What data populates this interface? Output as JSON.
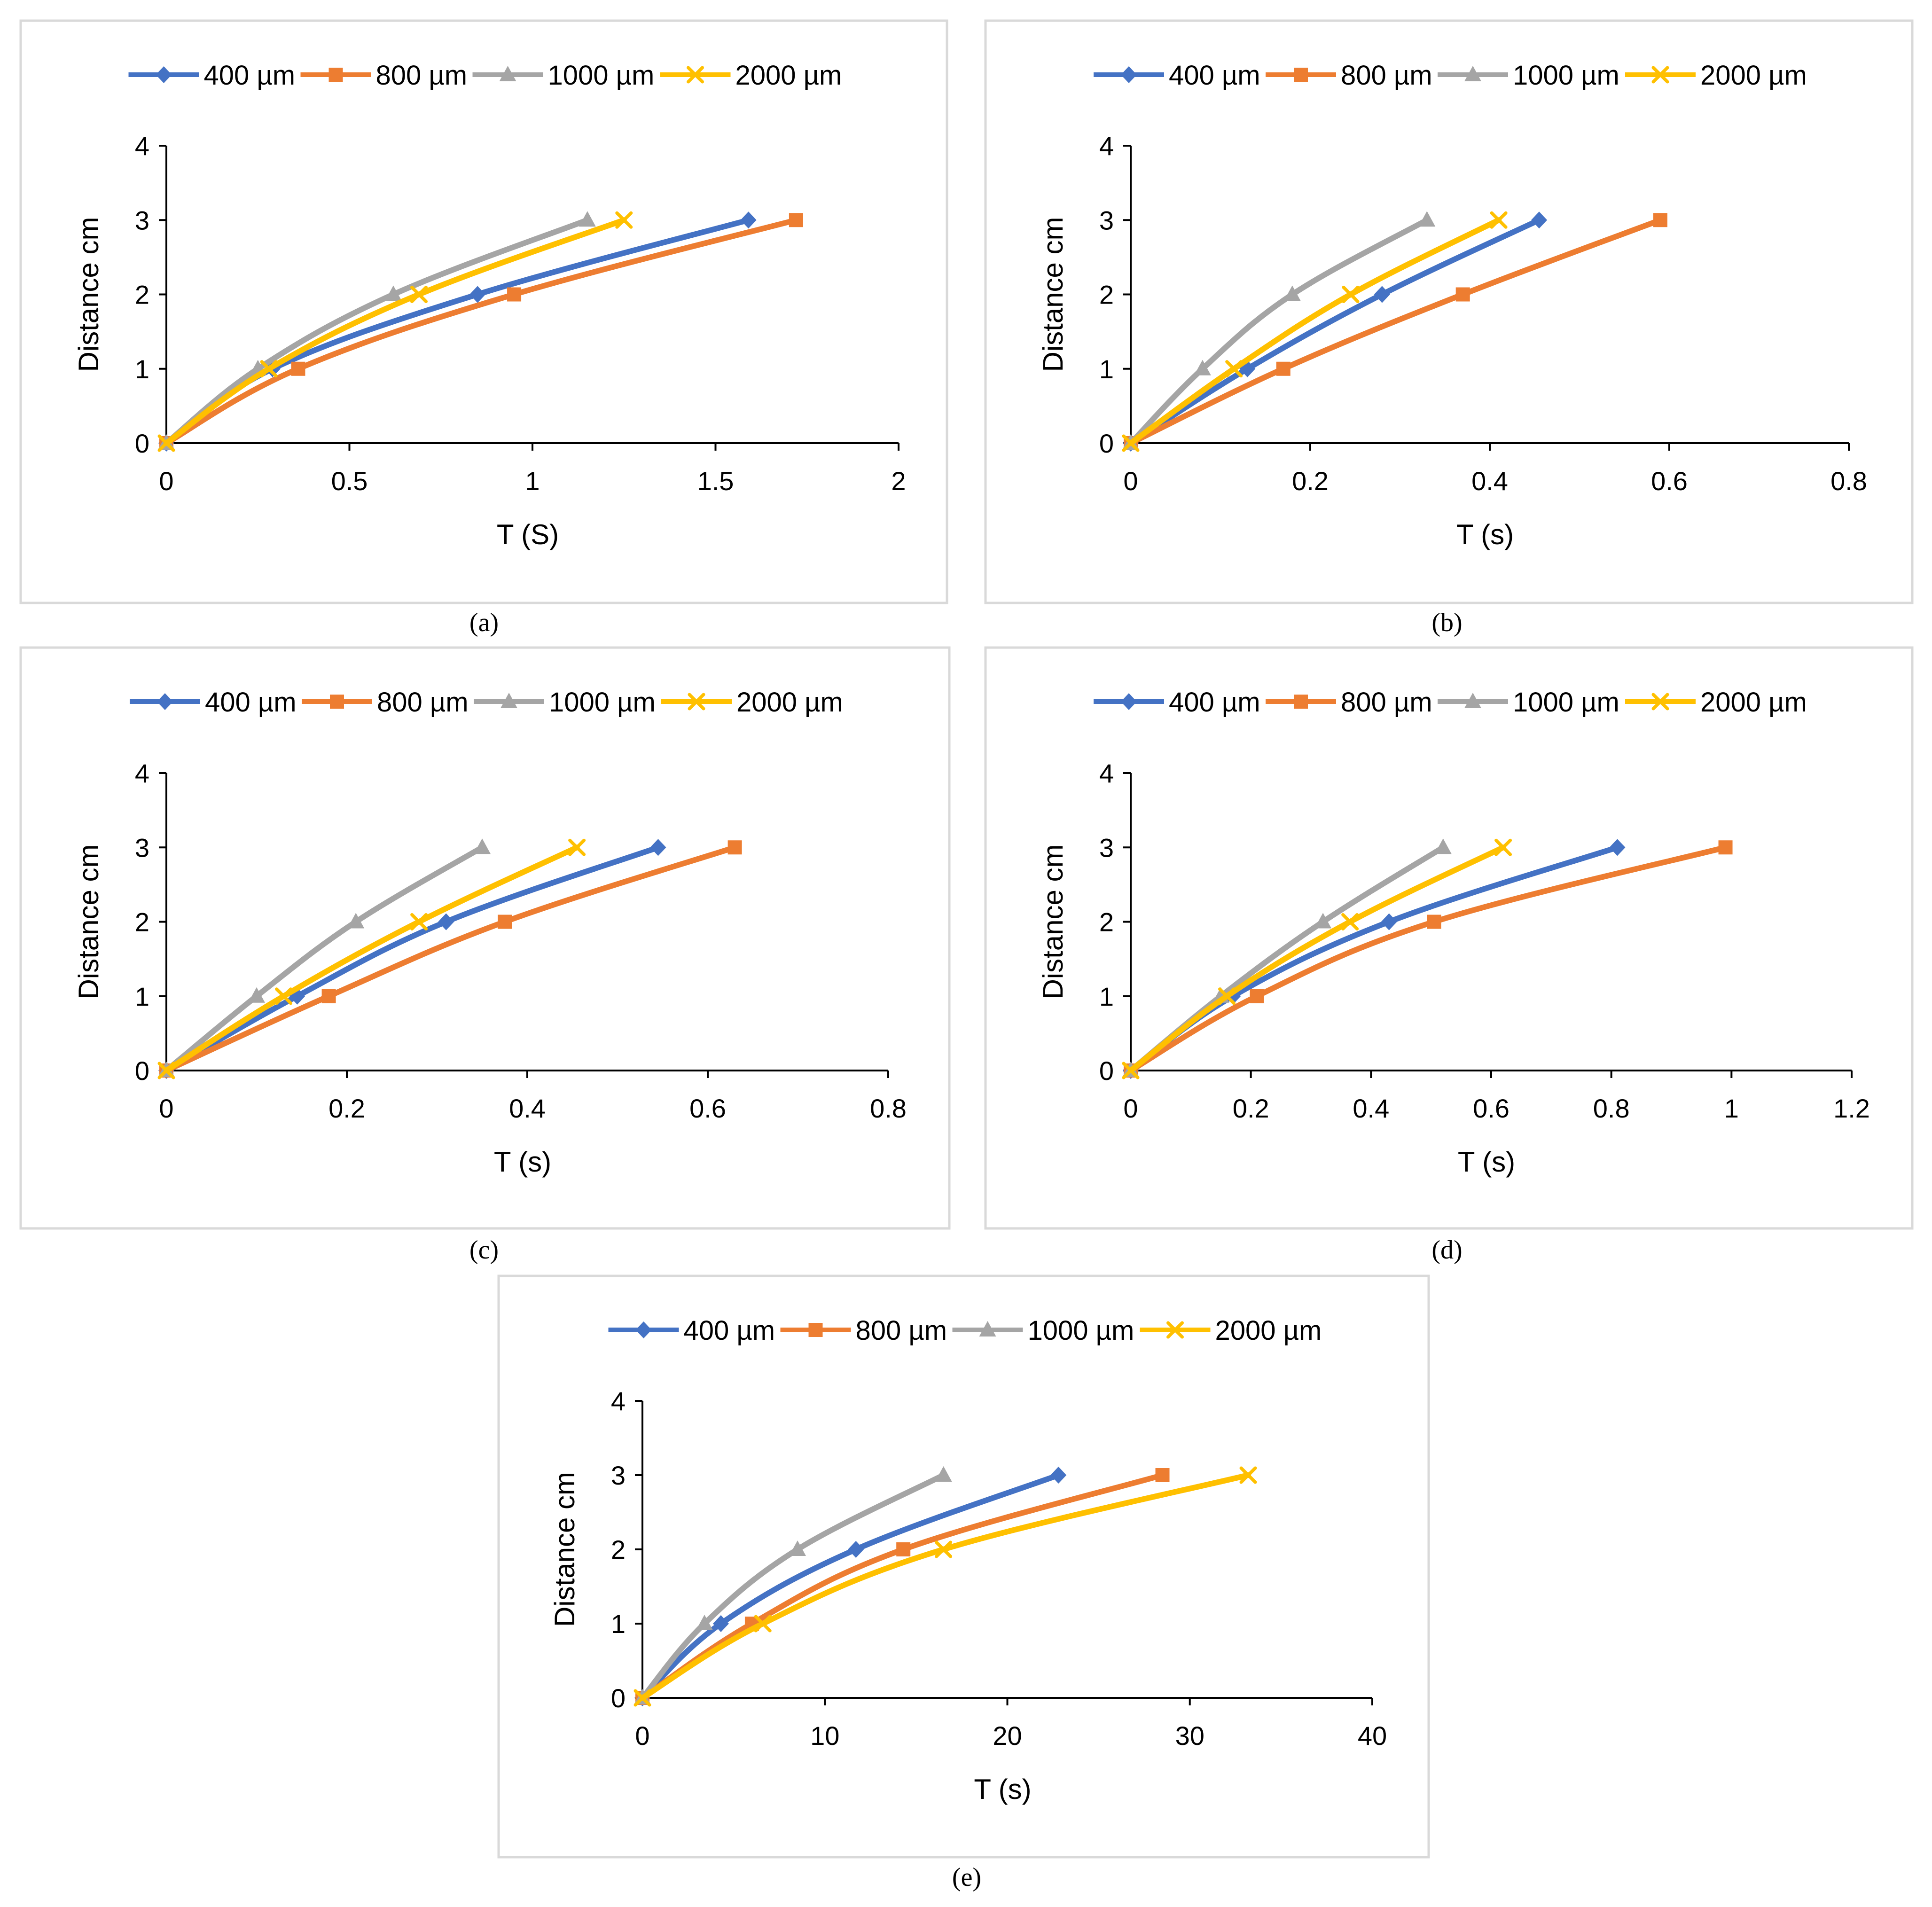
{
  "chart_data": [
    {
      "type": "line",
      "panel_label": "a",
      "xlabel": "T (S)",
      "ylabel": "Distance cm",
      "xlim": [
        0,
        2
      ],
      "xticks": [
        "0",
        "0.5",
        "1",
        "1.5",
        "2"
      ],
      "xtick_values": [
        0,
        0.5,
        1,
        1.5,
        2
      ],
      "ylim": [
        0,
        4
      ],
      "yticks": [
        "0",
        "1",
        "2",
        "3",
        "4"
      ],
      "ytick_values": [
        0,
        1,
        2,
        3,
        4
      ],
      "legend_position": "top",
      "series": [
        {
          "name": "400 µm",
          "x": [
            0,
            0.29,
            0.85,
            1.59
          ],
          "y": [
            0,
            1,
            2,
            3
          ]
        },
        {
          "name": "800 µm",
          "x": [
            0,
            0.36,
            0.95,
            1.72
          ],
          "y": [
            0,
            1,
            2,
            3
          ]
        },
        {
          "name": "1000 µm",
          "x": [
            0,
            0.25,
            0.62,
            1.15
          ],
          "y": [
            0,
            1,
            2,
            3
          ]
        },
        {
          "name": "2000 µm",
          "x": [
            0,
            0.28,
            0.69,
            1.25
          ],
          "y": [
            0,
            1,
            2,
            3
          ]
        }
      ]
    },
    {
      "type": "line",
      "panel_label": "b",
      "xlabel": "T (s)",
      "ylabel": "Distance cm",
      "xlim": [
        0,
        0.8
      ],
      "xticks": [
        "0",
        "0.2",
        "0.4",
        "0.6",
        "0.8"
      ],
      "xtick_values": [
        0,
        0.2,
        0.4,
        0.6,
        0.8
      ],
      "ylim": [
        0,
        4
      ],
      "yticks": [
        "0",
        "1",
        "2",
        "3",
        "4"
      ],
      "ytick_values": [
        0,
        1,
        2,
        3,
        4
      ],
      "legend_position": "top",
      "series": [
        {
          "name": "400 µm",
          "x": [
            0,
            0.13,
            0.28,
            0.455
          ],
          "y": [
            0,
            1,
            2,
            3
          ]
        },
        {
          "name": "800 µm",
          "x": [
            0,
            0.17,
            0.37,
            0.59
          ],
          "y": [
            0,
            1,
            2,
            3
          ]
        },
        {
          "name": "1000 µm",
          "x": [
            0,
            0.08,
            0.18,
            0.33
          ],
          "y": [
            0,
            1,
            2,
            3
          ]
        },
        {
          "name": "2000 µm",
          "x": [
            0,
            0.115,
            0.245,
            0.41
          ],
          "y": [
            0,
            1,
            2,
            3
          ]
        }
      ]
    },
    {
      "type": "line",
      "panel_label": "c",
      "xlabel": "T (s)",
      "ylabel": "Distance cm",
      "xlim": [
        0,
        0.8
      ],
      "xticks": [
        "0",
        "0.2",
        "0.4",
        "0.6",
        "0.8"
      ],
      "xtick_values": [
        0,
        0.2,
        0.4,
        0.6,
        0.8
      ],
      "ylim": [
        0,
        4
      ],
      "yticks": [
        "0",
        "1",
        "2",
        "3",
        "4"
      ],
      "ytick_values": [
        0,
        1,
        2,
        3,
        4
      ],
      "legend_position": "top",
      "series": [
        {
          "name": "400 µm",
          "x": [
            0,
            0.145,
            0.31,
            0.545
          ],
          "y": [
            0,
            1,
            2,
            3
          ]
        },
        {
          "name": "800 µm",
          "x": [
            0,
            0.18,
            0.375,
            0.63
          ],
          "y": [
            0,
            1,
            2,
            3
          ]
        },
        {
          "name": "1000 µm",
          "x": [
            0,
            0.1,
            0.21,
            0.35
          ],
          "y": [
            0,
            1,
            2,
            3
          ]
        },
        {
          "name": "2000 µm",
          "x": [
            0,
            0.13,
            0.28,
            0.455
          ],
          "y": [
            0,
            1,
            2,
            3
          ]
        }
      ]
    },
    {
      "type": "line",
      "panel_label": "d",
      "xlabel": "T (s)",
      "ylabel": "Distance cm",
      "xlim": [
        0,
        1.2
      ],
      "xticks": [
        "0",
        "0.2",
        "0.4",
        "0.6",
        "0.8",
        "1",
        "1.2"
      ],
      "xtick_values": [
        0,
        0.2,
        0.4,
        0.6,
        0.8,
        1,
        1.2
      ],
      "ylim": [
        0,
        4
      ],
      "yticks": [
        "0",
        "1",
        "2",
        "3",
        "4"
      ],
      "ytick_values": [
        0,
        1,
        2,
        3,
        4
      ],
      "legend_position": "top",
      "series": [
        {
          "name": "400 µm",
          "x": [
            0,
            0.17,
            0.43,
            0.81
          ],
          "y": [
            0,
            1,
            2,
            3
          ]
        },
        {
          "name": "800 µm",
          "x": [
            0,
            0.21,
            0.505,
            0.99
          ],
          "y": [
            0,
            1,
            2,
            3
          ]
        },
        {
          "name": "1000 µm",
          "x": [
            0,
            0.15,
            0.32,
            0.52
          ],
          "y": [
            0,
            1,
            2,
            3
          ]
        },
        {
          "name": "2000 µm",
          "x": [
            0,
            0.16,
            0.365,
            0.62
          ],
          "y": [
            0,
            1,
            2,
            3
          ]
        }
      ]
    },
    {
      "type": "line",
      "panel_label": "e",
      "xlabel": "T (s)",
      "ylabel": "Distance cm",
      "xlim": [
        0,
        40
      ],
      "xticks": [
        "0",
        "10",
        "20",
        "30",
        "40"
      ],
      "xtick_values": [
        0,
        10,
        20,
        30,
        40
      ],
      "ylim": [
        0,
        4
      ],
      "yticks": [
        "0",
        "1",
        "2",
        "3",
        "4"
      ],
      "ytick_values": [
        0,
        1,
        2,
        3,
        4
      ],
      "legend_position": "top",
      "series": [
        {
          "name": "400 µm",
          "x": [
            0,
            4.3,
            11.7,
            22.8
          ],
          "y": [
            0,
            1,
            2,
            3
          ]
        },
        {
          "name": "800 µm",
          "x": [
            0,
            6.0,
            14.3,
            28.5
          ],
          "y": [
            0,
            1,
            2,
            3
          ]
        },
        {
          "name": "1000 µm",
          "x": [
            0,
            3.4,
            8.5,
            16.5
          ],
          "y": [
            0,
            1,
            2,
            3
          ]
        },
        {
          "name": "2000 µm",
          "x": [
            0,
            6.6,
            16.5,
            33.2
          ],
          "y": [
            0,
            1,
            2,
            3
          ]
        }
      ]
    }
  ],
  "captions": [
    "(a)",
    "(b)",
    "(c)",
    "(d)",
    "(e)"
  ],
  "series_styles": [
    {
      "color": "#4472C4",
      "marker": "diamond"
    },
    {
      "color": "#ED7D31",
      "marker": "square"
    },
    {
      "color": "#A5A5A5",
      "marker": "triangle"
    },
    {
      "color": "#FFC000",
      "marker": "x"
    }
  ],
  "colors": {
    "axis": "#000000",
    "frame": "#D9D9D9",
    "text": "#000000"
  }
}
